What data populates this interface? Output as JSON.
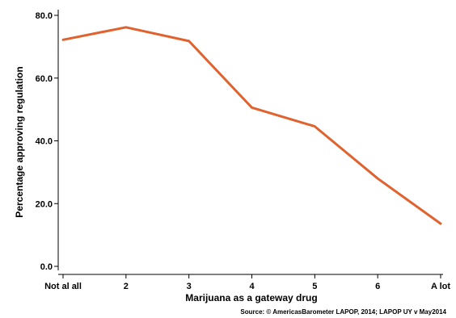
{
  "chart_data": {
    "type": "line",
    "xlabel": "Marijuana as a gateway drug",
    "ylabel": "Percentage approving regulation",
    "categories": [
      "Not al all",
      "2",
      "3",
      "4",
      "5",
      "6",
      "A lot"
    ],
    "series": [
      {
        "values": [
          72.2,
          76.2,
          71.8,
          50.6,
          44.6,
          28.0,
          13.6
        ],
        "color": "#e0622f"
      }
    ],
    "yticks": [
      "0.0",
      "20.0",
      "40.0",
      "60.0",
      "80.0"
    ],
    "ylim": [
      0,
      80
    ],
    "grid": false,
    "legend": "none",
    "source": "Source: © AmericasBarometer LAPOP, 2014; LAPOP UY v May2014"
  }
}
